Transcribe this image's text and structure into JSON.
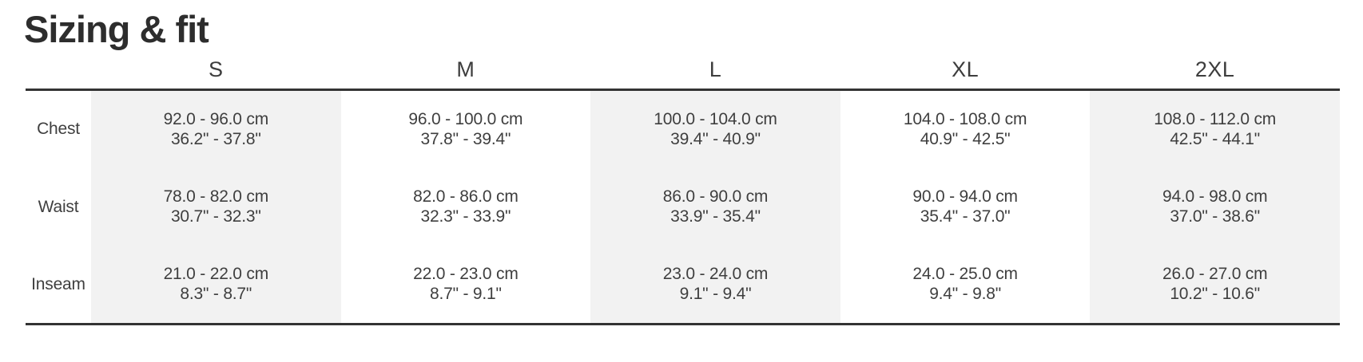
{
  "section": {
    "title": "Sizing & fit"
  },
  "colors": {
    "title_text": "#2d2d2d",
    "body_text": "#3f3f3f",
    "border": "#333333",
    "stripe_background": "#f2f2f2",
    "page_background": "#ffffff"
  },
  "table": {
    "columns": [
      "S",
      "M",
      "L",
      "XL",
      "2XL"
    ],
    "rows": [
      {
        "label": "Chest",
        "cells": [
          {
            "cm": "92.0 - 96.0 cm",
            "in": "36.2\" - 37.8\""
          },
          {
            "cm": "96.0 - 100.0 cm",
            "in": "37.8\" - 39.4\""
          },
          {
            "cm": "100.0 - 104.0 cm",
            "in": "39.4\" - 40.9\""
          },
          {
            "cm": "104.0 - 108.0 cm",
            "in": "40.9\" - 42.5\""
          },
          {
            "cm": "108.0 - 112.0 cm",
            "in": "42.5\" - 44.1\""
          }
        ]
      },
      {
        "label": "Waist",
        "cells": [
          {
            "cm": "78.0 - 82.0 cm",
            "in": "30.7\" - 32.3\""
          },
          {
            "cm": "82.0 - 86.0 cm",
            "in": "32.3\" - 33.9\""
          },
          {
            "cm": "86.0 - 90.0 cm",
            "in": "33.9\" - 35.4\""
          },
          {
            "cm": "90.0 - 94.0 cm",
            "in": "35.4\" - 37.0\""
          },
          {
            "cm": "94.0 - 98.0 cm",
            "in": "37.0\" - 38.6\""
          }
        ]
      },
      {
        "label": "Inseam",
        "cells": [
          {
            "cm": "21.0 - 22.0 cm",
            "in": "8.3\" - 8.7\""
          },
          {
            "cm": "22.0 - 23.0 cm",
            "in": "8.7\" - 9.1\""
          },
          {
            "cm": "23.0 - 24.0 cm",
            "in": "9.1\" - 9.4\""
          },
          {
            "cm": "24.0 - 25.0 cm",
            "in": "9.4\" - 9.8\""
          },
          {
            "cm": "26.0 - 27.0 cm",
            "in": "10.2\" - 10.6\""
          }
        ]
      }
    ]
  }
}
